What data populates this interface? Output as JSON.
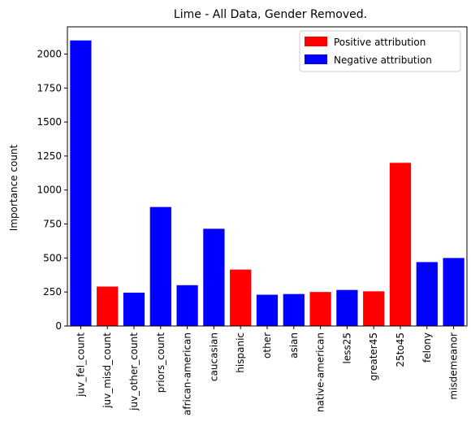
{
  "chart_data": {
    "type": "bar",
    "title": "Lime - All Data, Gender Removed.",
    "xlabel": "",
    "ylabel": "Importance count",
    "ylim": [
      0,
      2200
    ],
    "yticks": [
      0,
      250,
      500,
      750,
      1000,
      1250,
      1500,
      1750,
      2000
    ],
    "categories": [
      "juv_fel_count",
      "juv_misd_count",
      "juv_other_count",
      "priors_count",
      "african-american",
      "caucasian",
      "hispanic",
      "other",
      "asian",
      "native-american",
      "less25",
      "greater45",
      "25to45",
      "felony",
      "misdemeanor"
    ],
    "values": [
      2100,
      290,
      245,
      875,
      300,
      715,
      415,
      230,
      235,
      250,
      265,
      255,
      1200,
      470,
      500
    ],
    "attribution": [
      "negative",
      "positive",
      "negative",
      "negative",
      "negative",
      "negative",
      "positive",
      "negative",
      "negative",
      "positive",
      "negative",
      "positive",
      "positive",
      "negative",
      "negative"
    ],
    "colors": {
      "positive": "#ff0000",
      "negative": "#0000ff"
    },
    "legend": {
      "position": "top-right",
      "entries": [
        {
          "key": "positive",
          "label": "Positive attribution"
        },
        {
          "key": "negative",
          "label": "Negative attribution"
        }
      ]
    },
    "grid": false
  }
}
